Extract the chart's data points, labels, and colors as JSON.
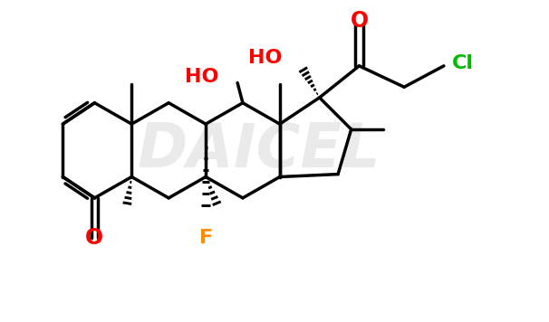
{
  "background_color": "#ffffff",
  "watermark_text": "DAICEL",
  "watermark_color": "#c8c8c8",
  "watermark_alpha": 0.38,
  "bond_color": "#000000",
  "bond_lw": 2.5,
  "label_O_color": "#ff0000",
  "label_HO_color": "#ff0000",
  "label_F_color": "#ff8c00",
  "label_Cl_color": "#00bb00",
  "label_fontsize": 14,
  "fig_width": 6.06,
  "fig_height": 3.56,
  "xlim": [
    0,
    10.0
  ],
  "ylim": [
    0,
    6.0
  ]
}
